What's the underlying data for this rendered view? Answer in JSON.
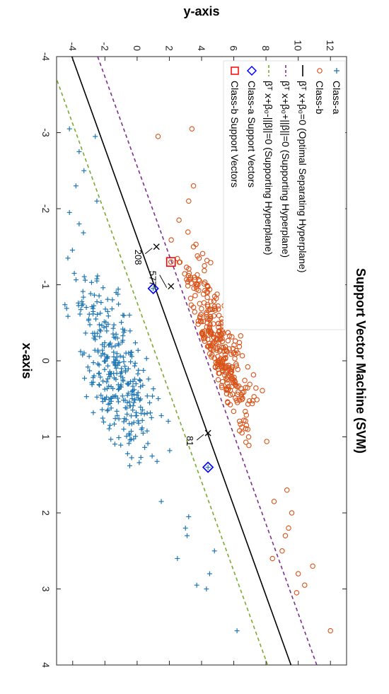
{
  "chart_data": {
    "type": "scatter",
    "title": "Support Vector Machine (SVM)",
    "xlabel": "x-axis",
    "ylabel": "y-axis",
    "xlim": [
      -4,
      4
    ],
    "ylim": [
      -5,
      13
    ],
    "xticks": [
      "-4",
      "-3",
      "-2",
      "-1",
      "0",
      "1",
      "2",
      "3",
      "4"
    ],
    "yticks": [
      "-4",
      "-2",
      "0",
      "2",
      "4",
      "6",
      "8",
      "10",
      "12"
    ],
    "grid": false,
    "legend_placement": "top-left",
    "colors": {
      "class_a": "#1f77b4",
      "class_b": "#d95319",
      "separating": "#000000",
      "support_plus": "#7e2f8e",
      "support_minus": "#77ac30",
      "sv_a": "#0000ff",
      "sv_b": "#ff0000"
    },
    "hyperplanes": {
      "separating": {
        "slope": 1.7,
        "intercept": 2.75
      },
      "support_plus": {
        "slope": 1.7,
        "intercept": 4.35
      },
      "support_minus": {
        "slope": 1.7,
        "intercept": 1.3
      }
    },
    "legend": [
      {
        "key": "class_a",
        "text": "Class-a"
      },
      {
        "key": "class_b",
        "text": "Class-b"
      },
      {
        "key": "separating",
        "pre": "—",
        "text": "βᵀ x+β₀=0 (Optimal Separating Hyperplane)"
      },
      {
        "key": "support_plus",
        "pre": "- -",
        "text": "βᵀ x+β₀+||β||=0 (Supporting Hyperplane)"
      },
      {
        "key": "support_minus",
        "pre": "- -",
        "text": "βᵀ x+β₀-||β||=0 (Supporting Hyperplane)"
      },
      {
        "key": "sv_a",
        "text": "Class-a Support Vectors"
      },
      {
        "key": "sv_b",
        "text": "Class-b Support Vectors"
      }
    ],
    "support_vectors": {
      "class_a": [
        {
          "x": 1.4,
          "y": 4.4
        },
        {
          "x": -0.95,
          "y": 1.0
        }
      ],
      "class_b": [
        {
          "x": -1.3,
          "y": 2.1
        }
      ]
    },
    "annotations": [
      {
        "label": "81",
        "x": 0.95,
        "y": 4.4
      },
      {
        "label": "577",
        "x": -0.98,
        "y": 2.1
      },
      {
        "label": "208",
        "x": -1.5,
        "y": 1.2
      }
    ],
    "class_a_highlight": [
      {
        "x": 3.55,
        "y": 6.2
      },
      {
        "x": 3.0,
        "y": 4.3
      },
      {
        "x": 2.95,
        "y": 3.7
      },
      {
        "x": 2.8,
        "y": 4.5
      },
      {
        "x": 2.6,
        "y": 2.5
      },
      {
        "x": 2.5,
        "y": 4.8
      },
      {
        "x": 2.3,
        "y": 3.1
      },
      {
        "x": 2.2,
        "y": 3.0
      },
      {
        "x": 2.05,
        "y": 3.2
      },
      {
        "x": 1.85,
        "y": 1.5
      },
      {
        "x": -3.05,
        "y": -4.2
      },
      {
        "x": -2.95,
        "y": -2.6
      },
      {
        "x": -2.75,
        "y": -3.6
      },
      {
        "x": -2.5,
        "y": -3.3
      },
      {
        "x": -2.3,
        "y": -3.8
      },
      {
        "x": -2.1,
        "y": -2.5
      },
      {
        "x": -1.95,
        "y": -4.2
      },
      {
        "x": -1.8,
        "y": -3.6
      },
      {
        "x": -1.35,
        "y": -4.3
      },
      {
        "x": -1.15,
        "y": -3.9
      }
    ],
    "class_b_highlight": [
      {
        "x": 3.55,
        "y": 12.0
      },
      {
        "x": 3.05,
        "y": 9.9
      },
      {
        "x": 2.95,
        "y": 10.4
      },
      {
        "x": 2.8,
        "y": 10.0
      },
      {
        "x": 2.7,
        "y": 10.9
      },
      {
        "x": 2.6,
        "y": 8.4
      },
      {
        "x": 2.5,
        "y": 9.0
      },
      {
        "x": 2.3,
        "y": 9.2
      },
      {
        "x": 2.2,
        "y": 9.4
      },
      {
        "x": 2.0,
        "y": 9.6
      },
      {
        "x": 1.85,
        "y": 8.5
      },
      {
        "x": 1.7,
        "y": 9.3
      },
      {
        "x": -2.95,
        "y": 1.3
      },
      {
        "x": -3.05,
        "y": 3.4
      },
      {
        "x": -2.3,
        "y": 3.5
      },
      {
        "x": -2.1,
        "y": 3.2
      },
      {
        "x": -1.85,
        "y": 2.6
      }
    ]
  }
}
